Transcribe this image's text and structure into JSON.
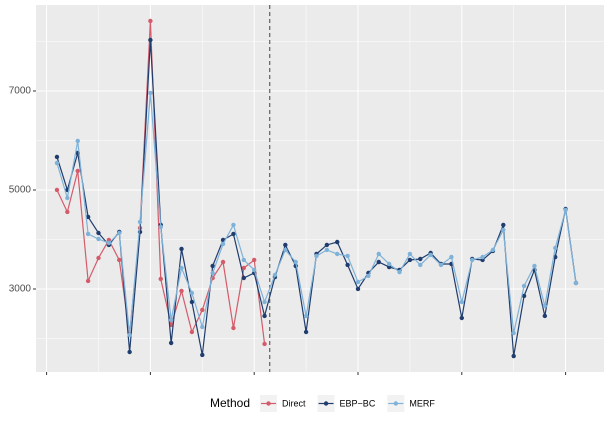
{
  "chart_data": {
    "type": "line",
    "x": [
      1,
      2,
      3,
      4,
      5,
      6,
      7,
      8,
      9,
      10,
      11,
      12,
      13,
      14,
      15,
      16,
      17,
      18,
      19,
      20,
      21,
      22,
      23,
      24,
      25,
      26,
      27,
      28,
      29,
      30,
      31,
      32,
      33,
      34,
      35,
      36,
      37,
      38,
      39,
      40,
      41,
      42,
      43,
      44,
      45,
      46,
      47,
      48,
      49,
      50,
      51
    ],
    "series": [
      {
        "name": "Direct",
        "color": "#d45b6a",
        "values": [
          5000,
          4556,
          5384,
          3162,
          3626,
          3990,
          3586,
          2091,
          4232,
          8414,
          3202,
          2273,
          2960,
          2131,
          2576,
          3222,
          3545,
          2212,
          3424,
          3586,
          1889,
          null,
          null,
          null,
          null,
          null,
          null,
          null,
          null,
          null,
          null,
          null,
          null,
          null,
          null,
          null,
          null,
          null,
          null,
          null,
          null,
          null,
          null,
          null,
          null,
          null,
          null,
          null,
          null,
          null,
          null
        ]
      },
      {
        "name": "EBP−BC",
        "color": "#1f3d6e",
        "values": [
          5667,
          5000,
          5747,
          4455,
          4131,
          3889,
          4152,
          1727,
          4152,
          8030,
          4293,
          1909,
          3808,
          2737,
          1667,
          3465,
          3990,
          4111,
          3222,
          3323,
          2455,
          3242,
          3889,
          3465,
          2131,
          3707,
          3889,
          3949,
          3485,
          3000,
          3323,
          3545,
          3444,
          3384,
          3586,
          3606,
          3727,
          3505,
          3505,
          2414,
          3606,
          3586,
          3768,
          4293,
          1646,
          2859,
          3384,
          2455,
          3646,
          4616,
          3121
        ]
      },
      {
        "name": "MERF",
        "color": "#7fb2d9",
        "values": [
          5545,
          4838,
          5990,
          4111,
          4010,
          3929,
          4131,
          2071,
          4354,
          6960,
          4253,
          2374,
          3424,
          2919,
          2232,
          3323,
          3909,
          4293,
          3586,
          3384,
          2737,
          3283,
          3788,
          3545,
          2455,
          3667,
          3788,
          3707,
          3667,
          3141,
          3263,
          3707,
          3505,
          3343,
          3707,
          3485,
          3687,
          3485,
          3646,
          2737,
          3586,
          3646,
          3788,
          4192,
          2111,
          3061,
          3465,
          2657,
          3828,
          4596,
          3121
        ]
      }
    ],
    "legend_title": "Method",
    "legend": "bottom",
    "vline": 21.5,
    "xlim": [
      -1.02,
      53.7
    ],
    "xticks": [
      0,
      10,
      20,
      30,
      40,
      50
    ],
    "ylim": [
      1323,
      8737
    ],
    "yticks": [
      3000,
      5000,
      7000
    ],
    "grid": true
  }
}
